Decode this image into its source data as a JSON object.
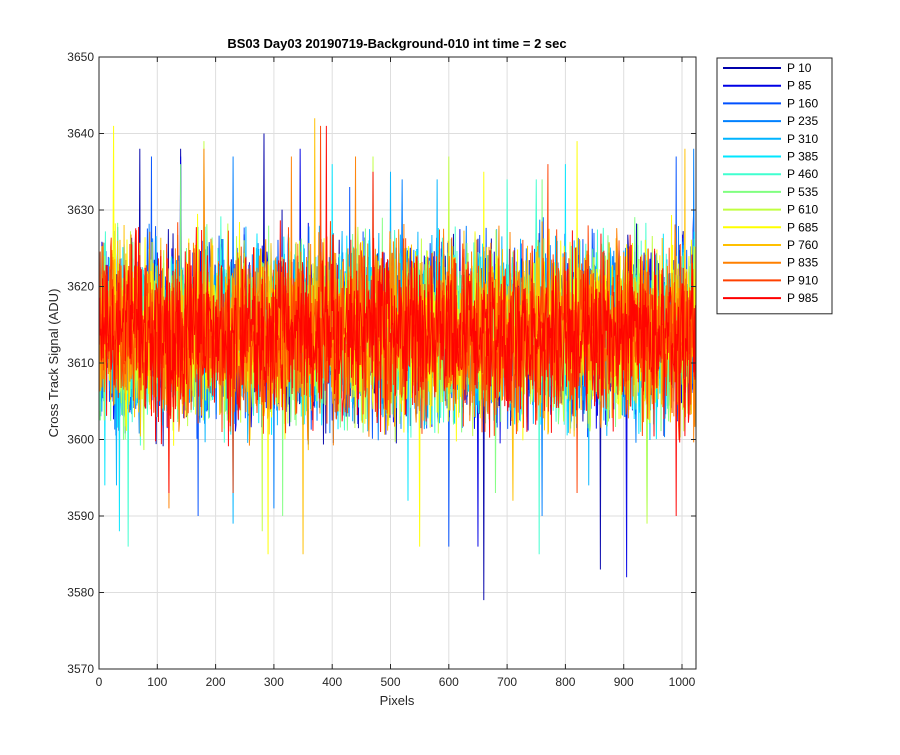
{
  "chart_data": {
    "type": "line",
    "title": "BS03 Day03 20190719-Background-010 int time = 2 sec",
    "xlabel": "Pixels",
    "ylabel": "Cross Track Signal (ADU)",
    "xlim": [
      0,
      1024
    ],
    "ylim": [
      3570,
      3650
    ],
    "xticks": [
      0,
      100,
      200,
      300,
      400,
      500,
      600,
      700,
      800,
      900,
      1000
    ],
    "yticks": [
      3570,
      3580,
      3590,
      3600,
      3610,
      3620,
      3630,
      3640,
      3650
    ],
    "grid": true,
    "legend_position": "outside-top-right",
    "noise_summary": {
      "mean": 3614,
      "typical_low": 3599,
      "typical_high": 3629
    },
    "series": [
      {
        "name": "P 10",
        "color": "#0000aa",
        "spikes": [
          [
            70,
            3638
          ],
          [
            140,
            3638
          ],
          [
            283,
            3640
          ],
          [
            660,
            3579
          ],
          [
            860,
            3583
          ]
        ]
      },
      {
        "name": "P 85",
        "color": "#0000e6",
        "spikes": [
          [
            140,
            3637
          ],
          [
            345,
            3638
          ],
          [
            650,
            3586
          ],
          [
            905,
            3582
          ],
          [
            1020,
            3630
          ]
        ]
      },
      {
        "name": "P 160",
        "color": "#0050ff",
        "spikes": [
          [
            90,
            3637
          ],
          [
            430,
            3633
          ],
          [
            990,
            3637
          ],
          [
            600,
            3586
          ],
          [
            170,
            3590
          ]
        ]
      },
      {
        "name": "P 235",
        "color": "#0080ff",
        "spikes": [
          [
            230,
            3637
          ],
          [
            520,
            3634
          ],
          [
            1020,
            3638
          ],
          [
            300,
            3591
          ],
          [
            760,
            3590
          ]
        ]
      },
      {
        "name": "P 310",
        "color": "#00b4ff",
        "spikes": [
          [
            500,
            3635
          ],
          [
            580,
            3634
          ],
          [
            230,
            3589
          ],
          [
            840,
            3594
          ],
          [
            30,
            3594
          ]
        ]
      },
      {
        "name": "P 385",
        "color": "#00e6ff",
        "spikes": [
          [
            400,
            3636
          ],
          [
            800,
            3636
          ],
          [
            35,
            3588
          ],
          [
            530,
            3592
          ],
          [
            10,
            3594
          ]
        ]
      },
      {
        "name": "P 460",
        "color": "#40ffd0",
        "spikes": [
          [
            700,
            3634
          ],
          [
            750,
            3634
          ],
          [
            50,
            3586
          ],
          [
            755,
            3585
          ],
          [
            940,
            3590
          ]
        ]
      },
      {
        "name": "P 535",
        "color": "#80ff80",
        "spikes": [
          [
            140,
            3636
          ],
          [
            760,
            3634
          ],
          [
            315,
            3590
          ],
          [
            680,
            3593
          ]
        ]
      },
      {
        "name": "P 610",
        "color": "#c0ff40",
        "spikes": [
          [
            180,
            3639
          ],
          [
            470,
            3637
          ],
          [
            600,
            3637
          ],
          [
            280,
            3588
          ],
          [
            940,
            3589
          ]
        ]
      },
      {
        "name": "P 685",
        "color": "#ffff00",
        "spikes": [
          [
            25,
            3641
          ],
          [
            660,
            3635
          ],
          [
            820,
            3639
          ],
          [
            290,
            3585
          ],
          [
            550,
            3586
          ]
        ]
      },
      {
        "name": "P 760",
        "color": "#ffc000",
        "spikes": [
          [
            370,
            3642
          ],
          [
            350,
            3585
          ],
          [
            1005,
            3638
          ],
          [
            710,
            3592
          ]
        ]
      },
      {
        "name": "P 835",
        "color": "#ff8000",
        "spikes": [
          [
            180,
            3638
          ],
          [
            330,
            3637
          ],
          [
            440,
            3637
          ],
          [
            120,
            3591
          ]
        ]
      },
      {
        "name": "P 910",
        "color": "#ff4000",
        "spikes": [
          [
            380,
            3641
          ],
          [
            770,
            3636
          ],
          [
            820,
            3593
          ],
          [
            230,
            3593
          ]
        ]
      },
      {
        "name": "P 985",
        "color": "#ff0000",
        "spikes": [
          [
            390,
            3641
          ],
          [
            470,
            3635
          ],
          [
            990,
            3590
          ],
          [
            120,
            3593
          ]
        ]
      }
    ]
  }
}
